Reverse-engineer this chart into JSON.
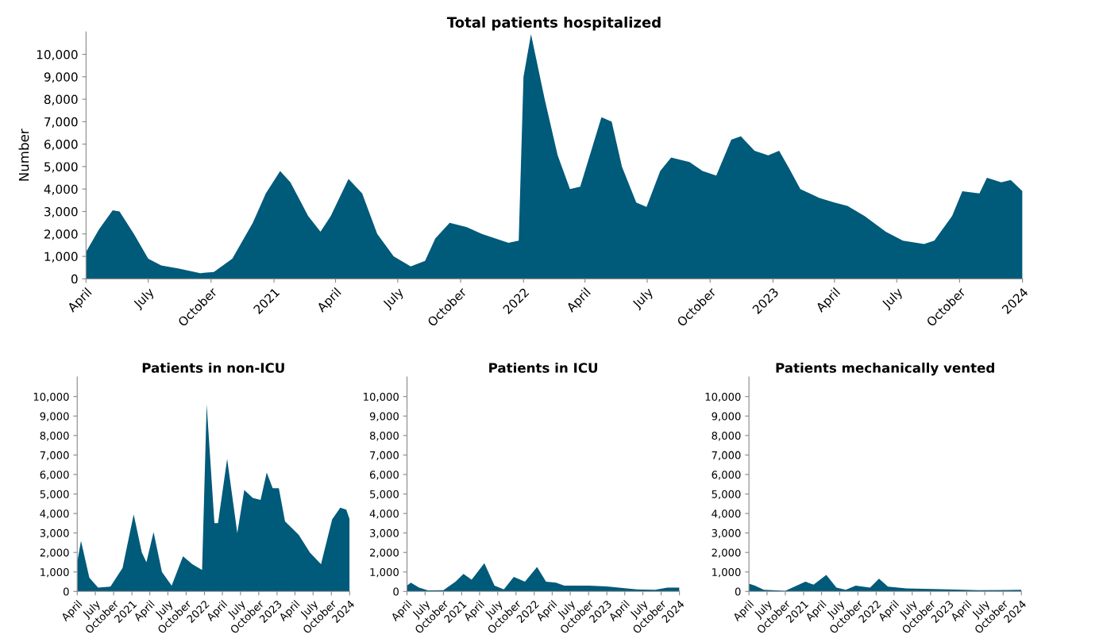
{
  "chart_data": [
    {
      "type": "area",
      "title": "Total patients hospitalized",
      "ylabel": "Number",
      "xlim": [
        "2020-04-01",
        "2024-01-01"
      ],
      "ylim": [
        0,
        11000
      ],
      "yticks": [
        0,
        {
          "value": 1000,
          "label": "1,000"
        },
        {
          "value": 2000,
          "label": "2,000"
        },
        {
          "value": 3000,
          "label": "3,000"
        },
        {
          "value": 4000,
          "label": "4,000"
        },
        {
          "value": 5000,
          "label": "5,000"
        },
        {
          "value": 6000,
          "label": "6,000"
        },
        {
          "value": 7000,
          "label": "7,000"
        },
        {
          "value": 8000,
          "label": "8,000"
        },
        {
          "value": 9000,
          "label": "9,000"
        },
        {
          "value": 10000,
          "label": "10,000"
        }
      ],
      "xticks": [
        {
          "value": "2020-04-01",
          "label": "April"
        },
        {
          "value": "2020-07-01",
          "label": "July"
        },
        {
          "value": "2020-10-01",
          "label": "October"
        },
        {
          "value": "2021-01-01",
          "label": "2021"
        },
        {
          "value": "2021-04-01",
          "label": "April"
        },
        {
          "value": "2021-07-01",
          "label": "July"
        },
        {
          "value": "2021-10-01",
          "label": "October"
        },
        {
          "value": "2022-01-01",
          "label": "2022"
        },
        {
          "value": "2022-04-01",
          "label": "April"
        },
        {
          "value": "2022-07-01",
          "label": "July"
        },
        {
          "value": "2022-10-01",
          "label": "October"
        },
        {
          "value": "2023-01-01",
          "label": "2023"
        },
        {
          "value": "2023-04-01",
          "label": "April"
        },
        {
          "value": "2023-07-01",
          "label": "July"
        },
        {
          "value": "2023-10-01",
          "label": "October"
        },
        {
          "value": "2024-01-01",
          "label": "2024"
        }
      ],
      "grid": false,
      "legend": false,
      "series": [
        {
          "color": "#005a7a",
          "x": [
            "2020-04-01",
            "2020-04-20",
            "2020-05-10",
            "2020-05-20",
            "2020-06-10",
            "2020-07-01",
            "2020-07-20",
            "2020-08-15",
            "2020-09-15",
            "2020-10-05",
            "2020-11-01",
            "2020-12-01",
            "2020-12-20",
            "2021-01-10",
            "2021-01-25",
            "2021-02-20",
            "2021-03-10",
            "2021-03-25",
            "2021-04-20",
            "2021-05-10",
            "2021-06-01",
            "2021-06-25",
            "2021-07-20",
            "2021-08-10",
            "2021-08-25",
            "2021-09-15",
            "2021-10-10",
            "2021-11-01",
            "2021-12-10",
            "2021-12-25",
            "2022-01-01",
            "2022-01-12",
            "2022-02-01",
            "2022-02-20",
            "2022-03-10",
            "2022-03-25",
            "2022-04-15",
            "2022-04-25",
            "2022-05-10",
            "2022-05-25",
            "2022-06-15",
            "2022-06-30",
            "2022-07-20",
            "2022-08-05",
            "2022-09-01",
            "2022-09-20",
            "2022-10-10",
            "2022-11-01",
            "2022-11-15",
            "2022-12-05",
            "2022-12-25",
            "2023-01-10",
            "2023-01-25",
            "2023-02-10",
            "2023-03-10",
            "2023-04-01",
            "2023-04-20",
            "2023-05-15",
            "2023-06-15",
            "2023-07-10",
            "2023-08-10",
            "2023-08-25",
            "2023-09-20",
            "2023-10-05",
            "2023-10-30",
            "2023-11-10",
            "2023-12-01",
            "2023-12-15",
            "2024-01-01"
          ],
          "values": [
            1200,
            2200,
            3050,
            3000,
            2000,
            900,
            600,
            450,
            250,
            300,
            900,
            2500,
            3800,
            4800,
            4300,
            2800,
            2100,
            2800,
            4450,
            3800,
            2000,
            1000,
            550,
            800,
            1800,
            2500,
            2300,
            2000,
            1600,
            1700,
            9000,
            10900,
            8000,
            5500,
            4000,
            4100,
            6200,
            7200,
            7000,
            5000,
            3400,
            3200,
            4800,
            5400,
            5200,
            4800,
            4600,
            6200,
            6350,
            5700,
            5500,
            5700,
            4900,
            4000,
            3600,
            3400,
            3250,
            2800,
            2100,
            1700,
            1550,
            1700,
            2800,
            3900,
            3800,
            4500,
            4300,
            4400,
            3900
          ]
        }
      ]
    },
    {
      "type": "area",
      "title": "Patients in non-ICU",
      "xlim": [
        "2020-04-01",
        "2024-01-01"
      ],
      "ylim": [
        0,
        11000
      ],
      "yticks": [
        0,
        {
          "value": 1000,
          "label": "1,000"
        },
        {
          "value": 2000,
          "label": "2,000"
        },
        {
          "value": 3000,
          "label": "3,000"
        },
        {
          "value": 4000,
          "label": "4,000"
        },
        {
          "value": 5000,
          "label": "5,000"
        },
        {
          "value": 6000,
          "label": "6,000"
        },
        {
          "value": 7000,
          "label": "7,000"
        },
        {
          "value": 8000,
          "label": "8,000"
        },
        {
          "value": 9000,
          "label": "9,000"
        },
        {
          "value": 10000,
          "label": "10,000"
        }
      ],
      "xticks": [
        {
          "value": "2020-04-01",
          "label": "April"
        },
        {
          "value": "2020-07-01",
          "label": "July"
        },
        {
          "value": "2020-10-01",
          "label": "October"
        },
        {
          "value": "2021-01-01",
          "label": "2021"
        },
        {
          "value": "2021-04-01",
          "label": "April"
        },
        {
          "value": "2021-07-01",
          "label": "July"
        },
        {
          "value": "2021-10-01",
          "label": "October"
        },
        {
          "value": "2022-01-01",
          "label": "2022"
        },
        {
          "value": "2022-04-01",
          "label": "April"
        },
        {
          "value": "2022-07-01",
          "label": "July"
        },
        {
          "value": "2022-10-01",
          "label": "October"
        },
        {
          "value": "2023-01-01",
          "label": "2023"
        },
        {
          "value": "2023-04-01",
          "label": "April"
        },
        {
          "value": "2023-07-01",
          "label": "July"
        },
        {
          "value": "2023-10-01",
          "label": "October"
        },
        {
          "value": "2024-01-01",
          "label": "2024"
        }
      ],
      "grid": false,
      "legend": false,
      "series": [
        {
          "color": "#005a7a",
          "x": [
            "2020-04-01",
            "2020-04-20",
            "2020-06-01",
            "2020-07-15",
            "2020-09-15",
            "2020-11-15",
            "2021-01-10",
            "2021-02-20",
            "2021-03-15",
            "2021-04-20",
            "2021-06-01",
            "2021-07-20",
            "2021-09-15",
            "2021-11-01",
            "2021-12-20",
            "2022-01-12",
            "2022-02-20",
            "2022-03-10",
            "2022-04-25",
            "2022-06-15",
            "2022-07-20",
            "2022-09-01",
            "2022-10-10",
            "2022-11-10",
            "2022-12-10",
            "2023-01-10",
            "2023-02-10",
            "2023-04-20",
            "2023-06-15",
            "2023-08-10",
            "2023-10-05",
            "2023-11-15",
            "2023-12-15",
            "2024-01-01"
          ],
          "values": [
            1500,
            2600,
            700,
            200,
            250,
            1200,
            3950,
            2000,
            1500,
            3050,
            1000,
            300,
            1800,
            1400,
            1100,
            9600,
            3500,
            3500,
            6800,
            3000,
            5200,
            4800,
            4700,
            6100,
            5300,
            5300,
            3600,
            2900,
            2000,
            1400,
            3700,
            4300,
            4200,
            3700
          ]
        }
      ]
    },
    {
      "type": "area",
      "title": "Patients in ICU",
      "xlim": [
        "2020-04-01",
        "2024-01-01"
      ],
      "ylim": [
        0,
        11000
      ],
      "yticks": [
        0,
        {
          "value": 1000,
          "label": "1,000"
        },
        {
          "value": 2000,
          "label": "2,000"
        },
        {
          "value": 3000,
          "label": "3,000"
        },
        {
          "value": 4000,
          "label": "4,000"
        },
        {
          "value": 5000,
          "label": "5,000"
        },
        {
          "value": 6000,
          "label": "6,000"
        },
        {
          "value": 7000,
          "label": "7,000"
        },
        {
          "value": 8000,
          "label": "8,000"
        },
        {
          "value": 9000,
          "label": "9,000"
        },
        {
          "value": 10000,
          "label": "10,000"
        }
      ],
      "xticks": [
        {
          "value": "2020-04-01",
          "label": "April"
        },
        {
          "value": "2020-07-01",
          "label": "July"
        },
        {
          "value": "2020-10-01",
          "label": "October"
        },
        {
          "value": "2021-01-01",
          "label": "2021"
        },
        {
          "value": "2021-04-01",
          "label": "April"
        },
        {
          "value": "2021-07-01",
          "label": "July"
        },
        {
          "value": "2021-10-01",
          "label": "October"
        },
        {
          "value": "2022-01-01",
          "label": "2022"
        },
        {
          "value": "2022-04-01",
          "label": "April"
        },
        {
          "value": "2022-07-01",
          "label": "July"
        },
        {
          "value": "2022-10-01",
          "label": "October"
        },
        {
          "value": "2023-01-01",
          "label": "2023"
        },
        {
          "value": "2023-04-01",
          "label": "April"
        },
        {
          "value": "2023-07-01",
          "label": "July"
        },
        {
          "value": "2023-10-01",
          "label": "October"
        },
        {
          "value": "2024-01-01",
          "label": "2024"
        }
      ],
      "grid": false,
      "legend": false,
      "series": [
        {
          "color": "#005a7a",
          "x": [
            "2020-04-01",
            "2020-04-20",
            "2020-06-01",
            "2020-07-15",
            "2020-10-01",
            "2020-12-01",
            "2021-01-10",
            "2021-02-20",
            "2021-04-25",
            "2021-06-15",
            "2021-08-01",
            "2021-09-20",
            "2021-11-15",
            "2022-01-15",
            "2022-03-01",
            "2022-04-20",
            "2022-06-01",
            "2022-10-01",
            "2023-01-10",
            "2023-06-01",
            "2023-09-01",
            "2023-11-01",
            "2024-01-01"
          ],
          "values": [
            300,
            450,
            200,
            50,
            60,
            500,
            900,
            600,
            1450,
            300,
            100,
            750,
            500,
            1250,
            500,
            450,
            300,
            300,
            250,
            100,
            80,
            200,
            200
          ]
        }
      ]
    },
    {
      "type": "area",
      "title": "Patients mechanically vented",
      "xlim": [
        "2020-04-01",
        "2024-01-01"
      ],
      "ylim": [
        0,
        11000
      ],
      "yticks": [
        0,
        {
          "value": 1000,
          "label": "1,000"
        },
        {
          "value": 2000,
          "label": "2,000"
        },
        {
          "value": 3000,
          "label": "3,000"
        },
        {
          "value": 4000,
          "label": "4,000"
        },
        {
          "value": 5000,
          "label": "5,000"
        },
        {
          "value": 6000,
          "label": "6,000"
        },
        {
          "value": 7000,
          "label": "7,000"
        },
        {
          "value": 8000,
          "label": "8,000"
        },
        {
          "value": 9000,
          "label": "9,000"
        },
        {
          "value": 10000,
          "label": "10,000"
        }
      ],
      "xticks": [
        {
          "value": "2020-04-01",
          "label": "April"
        },
        {
          "value": "2020-07-01",
          "label": "July"
        },
        {
          "value": "2020-10-01",
          "label": "October"
        },
        {
          "value": "2021-01-01",
          "label": "2021"
        },
        {
          "value": "2021-04-01",
          "label": "April"
        },
        {
          "value": "2021-07-01",
          "label": "July"
        },
        {
          "value": "2021-10-01",
          "label": "October"
        },
        {
          "value": "2022-01-01",
          "label": "2022"
        },
        {
          "value": "2022-04-01",
          "label": "April"
        },
        {
          "value": "2022-07-01",
          "label": "July"
        },
        {
          "value": "2022-10-01",
          "label": "October"
        },
        {
          "value": "2023-01-01",
          "label": "2023"
        },
        {
          "value": "2023-04-01",
          "label": "April"
        },
        {
          "value": "2023-07-01",
          "label": "July"
        },
        {
          "value": "2023-10-01",
          "label": "October"
        },
        {
          "value": "2024-01-01",
          "label": "2024"
        }
      ],
      "grid": false,
      "legend": false,
      "series": [
        {
          "color": "#005a7a",
          "x": [
            "2020-04-01",
            "2020-05-01",
            "2020-06-15",
            "2020-10-01",
            "2021-01-10",
            "2021-02-20",
            "2021-04-25",
            "2021-06-15",
            "2021-08-01",
            "2021-09-20",
            "2021-12-01",
            "2022-01-15",
            "2022-03-01",
            "2022-06-01",
            "2023-01-01",
            "2023-06-01",
            "2024-01-01"
          ],
          "values": [
            400,
            300,
            80,
            30,
            500,
            350,
            850,
            200,
            80,
            300,
            200,
            650,
            250,
            150,
            100,
            60,
            80
          ]
        }
      ]
    }
  ]
}
